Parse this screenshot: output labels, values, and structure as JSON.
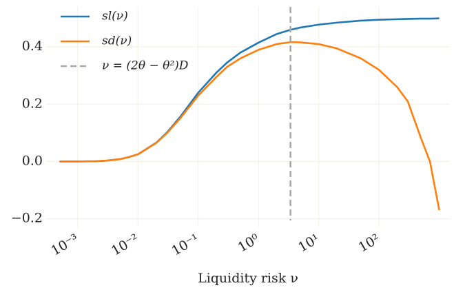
{
  "chart_data": {
    "type": "line",
    "x_label": "Liquidity risk ν",
    "x": [
      0.0005,
      0.001,
      0.002,
      0.003,
      0.005,
      0.007,
      0.01,
      0.02,
      0.03,
      0.05,
      0.1,
      0.2,
      0.3,
      0.5,
      1,
      2,
      3.4,
      5,
      10,
      20,
      50,
      100,
      200,
      300,
      500,
      700,
      1000
    ],
    "series": [
      {
        "name": "sl(ν)",
        "color": "#1f77b4",
        "values": [
          0,
          0,
          0.001,
          0.003,
          0.008,
          0.015,
          0.025,
          0.065,
          0.1,
          0.155,
          0.24,
          0.31,
          0.345,
          0.38,
          0.415,
          0.445,
          0.46,
          0.468,
          0.478,
          0.485,
          0.492,
          0.495,
          0.497,
          0.498,
          0.499,
          0.499,
          0.5
        ]
      },
      {
        "name": "sd(ν)",
        "color": "#ff7f0e",
        "values": [
          0,
          0,
          0.001,
          0.003,
          0.008,
          0.015,
          0.025,
          0.064,
          0.098,
          0.15,
          0.23,
          0.295,
          0.33,
          0.36,
          0.39,
          0.41,
          0.417,
          0.416,
          0.41,
          0.395,
          0.36,
          0.32,
          0.26,
          0.21,
          0.08,
          0.0,
          -0.17
        ]
      }
    ],
    "vline": {
      "x": 3.4,
      "label": "ν = (2θ − θ²)D",
      "color": "#aaaaaa"
    },
    "log_x": true,
    "xlim": [
      0.0003,
      1500
    ],
    "xticks": [
      {
        "value": 0.001,
        "label": "10⁻³"
      },
      {
        "value": 0.01,
        "label": "10⁻²"
      },
      {
        "value": 0.1,
        "label": "10⁻¹"
      },
      {
        "value": 1,
        "label": "10⁰"
      },
      {
        "value": 10,
        "label": "10¹"
      },
      {
        "value": 100,
        "label": "10²"
      }
    ],
    "ylim": [
      -0.23,
      0.54
    ],
    "yticks": [
      {
        "value": -0.2,
        "label": "−0.2"
      },
      {
        "value": 0,
        "label": "0.0"
      },
      {
        "value": 0.2,
        "label": "0.2"
      },
      {
        "value": 0.4,
        "label": "0.4"
      }
    ],
    "grid": true,
    "legend": "upper left"
  }
}
